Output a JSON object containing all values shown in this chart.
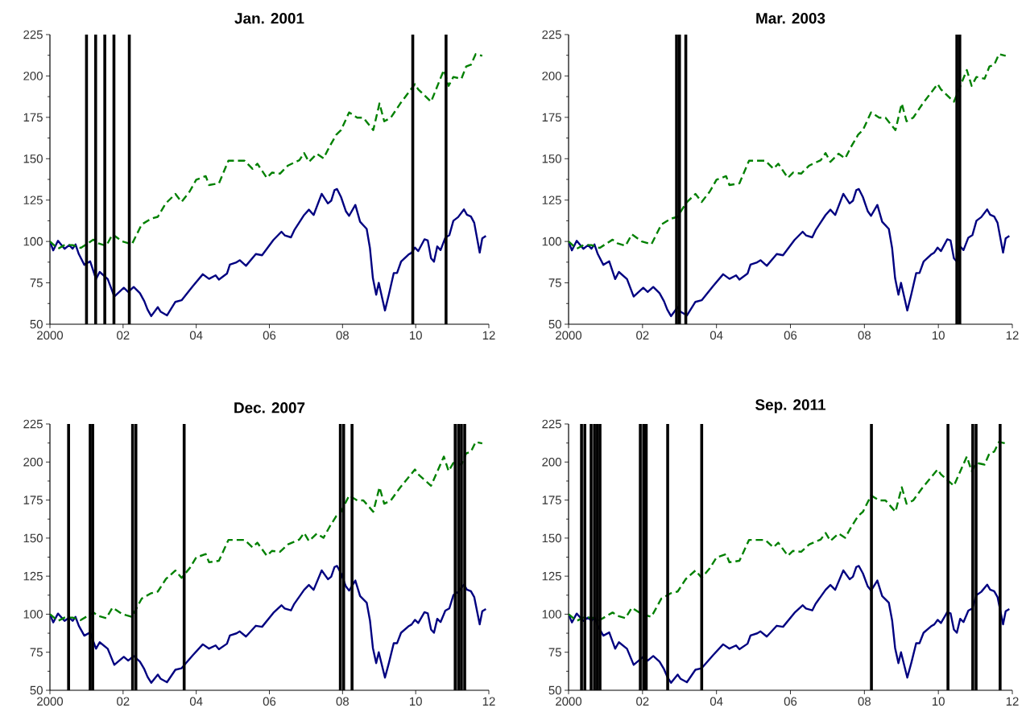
{
  "chart_data": [
    {
      "type": "line",
      "title": "Jan. 2001",
      "xlim": [
        2000,
        2012
      ],
      "ylim": [
        50,
        225
      ],
      "xticks": [
        {
          "value": 2000,
          "label": "2000"
        },
        {
          "value": 2002,
          "label": "02"
        },
        {
          "value": 2004,
          "label": "04"
        },
        {
          "value": 2006,
          "label": "06"
        },
        {
          "value": 2008,
          "label": "08"
        },
        {
          "value": 2010,
          "label": "10"
        },
        {
          "value": 2012,
          "label": "12"
        }
      ],
      "yticks": [
        50,
        75,
        100,
        125,
        150,
        175,
        200,
        225
      ],
      "series": [
        {
          "color": "#000080",
          "line_style": "solid",
          "x": [
            2000.0,
            2000.09,
            2000.22,
            2000.4,
            2000.53,
            2000.62,
            2000.7,
            2000.79,
            2000.94,
            2001.1,
            2001.26,
            2001.36,
            2001.58,
            2001.76,
            2002.02,
            2002.14,
            2002.29,
            2002.46,
            2002.58,
            2002.67,
            2002.77,
            2002.95,
            2003.03,
            2003.2,
            2003.43,
            2003.6,
            2003.91,
            2004.18,
            2004.35,
            2004.53,
            2004.62,
            2004.84,
            2004.92,
            2005.1,
            2005.19,
            2005.36,
            2005.63,
            2005.8,
            2006.11,
            2006.33,
            2006.42,
            2006.59,
            2006.68,
            2006.95,
            2007.08,
            2007.21,
            2007.43,
            2007.6,
            2007.69,
            2007.78,
            2007.85,
            2007.96,
            2008.09,
            2008.18,
            2008.35,
            2008.48,
            2008.66,
            2008.75,
            2008.83,
            2008.92,
            2008.99,
            2009.16,
            2009.27,
            2009.4,
            2009.49,
            2009.6,
            2009.8,
            2009.89,
            2009.98,
            2010.07,
            2010.24,
            2010.33,
            2010.42,
            2010.5,
            2010.59,
            2010.68,
            2010.81,
            2010.92,
            2011.03,
            2011.16,
            2011.32,
            2011.4,
            2011.51,
            2011.6,
            2011.75,
            2011.82,
            2011.92
          ],
          "values": [
            100,
            94.6,
            100.4,
            95.6,
            97.8,
            95.6,
            98.2,
            92.4,
            85.9,
            88,
            77.3,
            81.6,
            77.3,
            66.7,
            72,
            69.5,
            72.5,
            68.8,
            63.9,
            58.8,
            54.9,
            60.3,
            57.5,
            55.3,
            63.5,
            64.5,
            73.1,
            80.2,
            77.4,
            79.5,
            77,
            80.6,
            86,
            87.4,
            88.7,
            85.3,
            92.4,
            91.7,
            100.9,
            105.9,
            103.7,
            102.5,
            106.8,
            116,
            119.2,
            116,
            128.8,
            123,
            124.6,
            131,
            131.7,
            126.8,
            118.3,
            115.5,
            122.1,
            111.9,
            107.6,
            95.9,
            77.8,
            67.8,
            75,
            58.3,
            68.2,
            80.9,
            80.9,
            87.8,
            92,
            93.3,
            96.3,
            94.2,
            101.3,
            100.6,
            89.9,
            87.8,
            97,
            94.8,
            102.3,
            103.8,
            112.5,
            114.7,
            119.4,
            116.2,
            115.1,
            111.3,
            93.3,
            101.9,
            103.4
          ]
        },
        {
          "color": "#008000",
          "line_style": "dashed",
          "x": [
            2000.0,
            2000.22,
            2000.4,
            2000.62,
            2000.84,
            2001.19,
            2001.32,
            2001.54,
            2001.71,
            2001.98,
            2002.24,
            2002.51,
            2002.77,
            2002.95,
            2003.17,
            2003.43,
            2003.6,
            2003.82,
            2004.0,
            2004.26,
            2004.35,
            2004.62,
            2004.88,
            2005.14,
            2005.32,
            2005.54,
            2005.67,
            2005.93,
            2006.07,
            2006.29,
            2006.51,
            2006.82,
            2006.95,
            2007.08,
            2007.3,
            2007.48,
            2007.65,
            2007.83,
            2007.96,
            2008.18,
            2008.4,
            2008.57,
            2008.84,
            2009.01,
            2009.14,
            2009.32,
            2009.58,
            2009.98,
            2010.07,
            2010.42,
            2010.77,
            2010.9,
            2011.03,
            2011.25,
            2011.38,
            2011.51,
            2011.64,
            2011.82
          ],
          "values": [
            100,
            95.6,
            97.8,
            97.8,
            96.1,
            101.1,
            98.9,
            97.4,
            104.3,
            100,
            98.3,
            110.3,
            113.8,
            114.9,
            123.1,
            128.7,
            123.9,
            130.2,
            137.3,
            139.5,
            134.1,
            135.1,
            148.8,
            148.8,
            148.8,
            143.9,
            147,
            138.4,
            141.6,
            141,
            145.9,
            149.1,
            153.4,
            148.1,
            153,
            150.2,
            157.6,
            164.5,
            167.3,
            178,
            174.8,
            174.8,
            167.3,
            183.4,
            172.6,
            174.8,
            183.4,
            195.1,
            191.9,
            184.4,
            203.6,
            194,
            199.4,
            198.3,
            205.7,
            206.8,
            213.2,
            212.2
          ]
        }
      ],
      "ref_lines": [
        {
          "axis": "x",
          "value": 2001.0,
          "color": "#000000"
        },
        {
          "axis": "x",
          "value": 2001.25,
          "color": "#000000"
        },
        {
          "axis": "x",
          "value": 2001.5,
          "color": "#000000"
        },
        {
          "axis": "x",
          "value": 2001.75,
          "color": "#000000"
        },
        {
          "axis": "x",
          "value": 2002.17,
          "color": "#000000"
        },
        {
          "axis": "x",
          "value": 2009.92,
          "color": "#000000"
        },
        {
          "axis": "x",
          "value": 2010.83,
          "color": "#000000"
        }
      ]
    },
    {
      "type": "line",
      "title": "Mar. 2003",
      "xlim": [
        2000,
        2012
      ],
      "ylim": [
        50,
        225
      ],
      "xticks": [
        {
          "value": 2000,
          "label": "2000"
        },
        {
          "value": 2002,
          "label": "02"
        },
        {
          "value": 2004,
          "label": "04"
        },
        {
          "value": 2006,
          "label": "06"
        },
        {
          "value": 2008,
          "label": "08"
        },
        {
          "value": 2010,
          "label": "10"
        },
        {
          "value": 2012,
          "label": "12"
        }
      ],
      "yticks": [
        50,
        75,
        100,
        125,
        150,
        175,
        200,
        225
      ],
      "series": [
        {
          "color": "#000080",
          "line_style": "solid",
          "x": [
            2000.0,
            2000.09,
            2000.22,
            2000.4,
            2000.53,
            2000.62,
            2000.7,
            2000.79,
            2000.94,
            2001.1,
            2001.26,
            2001.36,
            2001.58,
            2001.76,
            2002.02,
            2002.14,
            2002.29,
            2002.46,
            2002.58,
            2002.67,
            2002.77,
            2002.95,
            2003.03,
            2003.2,
            2003.43,
            2003.6,
            2003.91,
            2004.18,
            2004.35,
            2004.53,
            2004.62,
            2004.84,
            2004.92,
            2005.1,
            2005.19,
            2005.36,
            2005.63,
            2005.8,
            2006.11,
            2006.33,
            2006.42,
            2006.59,
            2006.68,
            2006.95,
            2007.08,
            2007.21,
            2007.43,
            2007.6,
            2007.69,
            2007.78,
            2007.85,
            2007.96,
            2008.09,
            2008.18,
            2008.35,
            2008.48,
            2008.66,
            2008.75,
            2008.83,
            2008.92,
            2008.99,
            2009.16,
            2009.27,
            2009.4,
            2009.49,
            2009.6,
            2009.8,
            2009.89,
            2009.98,
            2010.07,
            2010.24,
            2010.33,
            2010.42,
            2010.5,
            2010.59,
            2010.68,
            2010.81,
            2010.92,
            2011.03,
            2011.16,
            2011.32,
            2011.4,
            2011.51,
            2011.6,
            2011.75,
            2011.82,
            2011.92
          ],
          "values": [
            100,
            94.6,
            100.4,
            95.6,
            97.8,
            95.6,
            98.2,
            92.4,
            85.9,
            88,
            77.3,
            81.6,
            77.3,
            66.7,
            72,
            69.5,
            72.5,
            68.8,
            63.9,
            58.8,
            54.9,
            60.3,
            57.5,
            55.3,
            63.5,
            64.5,
            73.1,
            80.2,
            77.4,
            79.5,
            77,
            80.6,
            86,
            87.4,
            88.7,
            85.3,
            92.4,
            91.7,
            100.9,
            105.9,
            103.7,
            102.5,
            106.8,
            116,
            119.2,
            116,
            128.8,
            123,
            124.6,
            131,
            131.7,
            126.8,
            118.3,
            115.5,
            122.1,
            111.9,
            107.6,
            95.9,
            77.8,
            67.8,
            75,
            58.3,
            68.2,
            80.9,
            80.9,
            87.8,
            92,
            93.3,
            96.3,
            94.2,
            101.3,
            100.6,
            89.9,
            87.8,
            97,
            94.8,
            102.3,
            103.8,
            112.5,
            114.7,
            119.4,
            116.2,
            115.1,
            111.3,
            93.3,
            101.9,
            103.4
          ]
        },
        {
          "color": "#008000",
          "line_style": "dashed",
          "x": [
            2000.0,
            2000.22,
            2000.4,
            2000.62,
            2000.84,
            2001.19,
            2001.32,
            2001.54,
            2001.71,
            2001.98,
            2002.24,
            2002.51,
            2002.77,
            2002.95,
            2003.17,
            2003.43,
            2003.6,
            2003.82,
            2004.0,
            2004.26,
            2004.35,
            2004.62,
            2004.88,
            2005.14,
            2005.32,
            2005.54,
            2005.67,
            2005.93,
            2006.07,
            2006.29,
            2006.51,
            2006.82,
            2006.95,
            2007.08,
            2007.3,
            2007.48,
            2007.65,
            2007.83,
            2007.96,
            2008.18,
            2008.4,
            2008.57,
            2008.84,
            2009.01,
            2009.14,
            2009.32,
            2009.58,
            2009.98,
            2010.07,
            2010.42,
            2010.77,
            2010.9,
            2011.03,
            2011.25,
            2011.38,
            2011.51,
            2011.64,
            2011.82
          ],
          "values": [
            100,
            95.6,
            97.8,
            97.8,
            96.1,
            101.1,
            98.9,
            97.4,
            104.3,
            100,
            98.3,
            110.3,
            113.8,
            114.9,
            123.1,
            128.7,
            123.9,
            130.2,
            137.3,
            139.5,
            134.1,
            135.1,
            148.8,
            148.8,
            148.8,
            143.9,
            147,
            138.4,
            141.6,
            141,
            145.9,
            149.1,
            153.4,
            148.1,
            153,
            150.2,
            157.6,
            164.5,
            167.3,
            178,
            174.8,
            174.8,
            167.3,
            183.4,
            172.6,
            174.8,
            183.4,
            195.1,
            191.9,
            184.4,
            203.6,
            194,
            199.4,
            198.3,
            205.7,
            206.8,
            213.2,
            212.2
          ]
        }
      ],
      "ref_lines": [
        {
          "axis": "x",
          "value": 2002.92,
          "color": "#000000"
        },
        {
          "axis": "x",
          "value": 2003.0,
          "color": "#000000"
        },
        {
          "axis": "x",
          "value": 2003.17,
          "color": "#000000"
        },
        {
          "axis": "x",
          "value": 2010.5,
          "color": "#000000"
        },
        {
          "axis": "x",
          "value": 2010.58,
          "color": "#000000"
        }
      ]
    },
    {
      "type": "line",
      "title": "Dec. 2007",
      "xlim": [
        2000,
        2012
      ],
      "ylim": [
        50,
        225
      ],
      "xticks": [
        {
          "value": 2000,
          "label": "2000"
        },
        {
          "value": 2002,
          "label": "02"
        },
        {
          "value": 2004,
          "label": "04"
        },
        {
          "value": 2006,
          "label": "06"
        },
        {
          "value": 2008,
          "label": "08"
        },
        {
          "value": 2010,
          "label": "10"
        },
        {
          "value": 2012,
          "label": "12"
        }
      ],
      "yticks": [
        50,
        75,
        100,
        125,
        150,
        175,
        200,
        225
      ],
      "series": [
        {
          "color": "#000080",
          "line_style": "solid",
          "x": [
            2000.0,
            2000.09,
            2000.22,
            2000.4,
            2000.53,
            2000.62,
            2000.7,
            2000.79,
            2000.94,
            2001.1,
            2001.26,
            2001.36,
            2001.58,
            2001.76,
            2002.02,
            2002.14,
            2002.29,
            2002.46,
            2002.58,
            2002.67,
            2002.77,
            2002.95,
            2003.03,
            2003.2,
            2003.43,
            2003.6,
            2003.91,
            2004.18,
            2004.35,
            2004.53,
            2004.62,
            2004.84,
            2004.92,
            2005.1,
            2005.19,
            2005.36,
            2005.63,
            2005.8,
            2006.11,
            2006.33,
            2006.42,
            2006.59,
            2006.68,
            2006.95,
            2007.08,
            2007.21,
            2007.43,
            2007.6,
            2007.69,
            2007.78,
            2007.85,
            2007.96,
            2008.09,
            2008.18,
            2008.35,
            2008.48,
            2008.66,
            2008.75,
            2008.83,
            2008.92,
            2008.99,
            2009.16,
            2009.27,
            2009.4,
            2009.49,
            2009.6,
            2009.8,
            2009.89,
            2009.98,
            2010.07,
            2010.24,
            2010.33,
            2010.42,
            2010.5,
            2010.59,
            2010.68,
            2010.81,
            2010.92,
            2011.03,
            2011.16,
            2011.32,
            2011.4,
            2011.51,
            2011.6,
            2011.75,
            2011.82,
            2011.92
          ],
          "values": [
            100,
            94.6,
            100.4,
            95.6,
            97.8,
            95.6,
            98.2,
            92.4,
            85.9,
            88,
            77.3,
            81.6,
            77.3,
            66.7,
            72,
            69.5,
            72.5,
            68.8,
            63.9,
            58.8,
            54.9,
            60.3,
            57.5,
            55.3,
            63.5,
            64.5,
            73.1,
            80.2,
            77.4,
            79.5,
            77,
            80.6,
            86,
            87.4,
            88.7,
            85.3,
            92.4,
            91.7,
            100.9,
            105.9,
            103.7,
            102.5,
            106.8,
            116,
            119.2,
            116,
            128.8,
            123,
            124.6,
            131,
            131.7,
            126.8,
            118.3,
            115.5,
            122.1,
            111.9,
            107.6,
            95.9,
            77.8,
            67.8,
            75,
            58.3,
            68.2,
            80.9,
            80.9,
            87.8,
            92,
            93.3,
            96.3,
            94.2,
            101.3,
            100.6,
            89.9,
            87.8,
            97,
            94.8,
            102.3,
            103.8,
            112.5,
            114.7,
            119.4,
            116.2,
            115.1,
            111.3,
            93.3,
            101.9,
            103.4
          ]
        },
        {
          "color": "#008000",
          "line_style": "dashed",
          "x": [
            2000.0,
            2000.22,
            2000.4,
            2000.62,
            2000.84,
            2001.19,
            2001.32,
            2001.54,
            2001.71,
            2001.98,
            2002.24,
            2002.51,
            2002.77,
            2002.95,
            2003.17,
            2003.43,
            2003.6,
            2003.82,
            2004.0,
            2004.26,
            2004.35,
            2004.62,
            2004.88,
            2005.14,
            2005.32,
            2005.54,
            2005.67,
            2005.93,
            2006.07,
            2006.29,
            2006.51,
            2006.82,
            2006.95,
            2007.08,
            2007.3,
            2007.48,
            2007.65,
            2007.83,
            2007.96,
            2008.18,
            2008.4,
            2008.57,
            2008.84,
            2009.01,
            2009.14,
            2009.32,
            2009.58,
            2009.98,
            2010.07,
            2010.42,
            2010.77,
            2010.9,
            2011.03,
            2011.25,
            2011.38,
            2011.51,
            2011.64,
            2011.82
          ],
          "values": [
            100,
            95.6,
            97.8,
            97.8,
            96.1,
            101.1,
            98.9,
            97.4,
            104.3,
            100,
            98.3,
            110.3,
            113.8,
            114.9,
            123.1,
            128.7,
            123.9,
            130.2,
            137.3,
            139.5,
            134.1,
            135.1,
            148.8,
            148.8,
            148.8,
            143.9,
            147,
            138.4,
            141.6,
            141,
            145.9,
            149.1,
            153.4,
            148.1,
            153,
            150.2,
            157.6,
            164.5,
            167.3,
            178,
            174.8,
            174.8,
            167.3,
            183.4,
            172.6,
            174.8,
            183.4,
            195.1,
            191.9,
            184.4,
            203.6,
            194,
            199.4,
            198.3,
            205.7,
            206.8,
            213.2,
            212.2
          ]
        }
      ],
      "ref_lines": [
        {
          "axis": "x",
          "value": 2000.51,
          "color": "#000000"
        },
        {
          "axis": "x",
          "value": 2001.1,
          "color": "#000000"
        },
        {
          "axis": "x",
          "value": 2001.17,
          "color": "#000000"
        },
        {
          "axis": "x",
          "value": 2002.26,
          "color": "#000000"
        },
        {
          "axis": "x",
          "value": 2002.35,
          "color": "#000000"
        },
        {
          "axis": "x",
          "value": 2003.67,
          "color": "#000000"
        },
        {
          "axis": "x",
          "value": 2007.94,
          "color": "#000000"
        },
        {
          "axis": "x",
          "value": 2008.03,
          "color": "#000000"
        },
        {
          "axis": "x",
          "value": 2008.26,
          "color": "#000000"
        },
        {
          "axis": "x",
          "value": 2011.08,
          "color": "#000000"
        },
        {
          "axis": "x",
          "value": 2011.17,
          "color": "#000000"
        },
        {
          "axis": "x",
          "value": 2011.25,
          "color": "#000000"
        },
        {
          "axis": "x",
          "value": 2011.34,
          "color": "#000000"
        }
      ]
    },
    {
      "type": "line",
      "title": "Sep. 2011",
      "xlim": [
        2000,
        2012
      ],
      "ylim": [
        50,
        225
      ],
      "xticks": [
        {
          "value": 2000,
          "label": "2000"
        },
        {
          "value": 2002,
          "label": "02"
        },
        {
          "value": 2004,
          "label": "04"
        },
        {
          "value": 2006,
          "label": "06"
        },
        {
          "value": 2008,
          "label": "08"
        },
        {
          "value": 2010,
          "label": "10"
        },
        {
          "value": 2012,
          "label": "12"
        }
      ],
      "yticks": [
        50,
        75,
        100,
        125,
        150,
        175,
        200,
        225
      ],
      "series": [
        {
          "color": "#000080",
          "line_style": "solid",
          "x": [
            2000.0,
            2000.09,
            2000.22,
            2000.4,
            2000.53,
            2000.62,
            2000.7,
            2000.79,
            2000.94,
            2001.1,
            2001.26,
            2001.36,
            2001.58,
            2001.76,
            2002.02,
            2002.14,
            2002.29,
            2002.46,
            2002.58,
            2002.67,
            2002.77,
            2002.95,
            2003.03,
            2003.2,
            2003.43,
            2003.6,
            2003.91,
            2004.18,
            2004.35,
            2004.53,
            2004.62,
            2004.84,
            2004.92,
            2005.1,
            2005.19,
            2005.36,
            2005.63,
            2005.8,
            2006.11,
            2006.33,
            2006.42,
            2006.59,
            2006.68,
            2006.95,
            2007.08,
            2007.21,
            2007.43,
            2007.6,
            2007.69,
            2007.78,
            2007.85,
            2007.96,
            2008.09,
            2008.18,
            2008.35,
            2008.48,
            2008.66,
            2008.75,
            2008.83,
            2008.92,
            2008.99,
            2009.16,
            2009.27,
            2009.4,
            2009.49,
            2009.6,
            2009.8,
            2009.89,
            2009.98,
            2010.07,
            2010.24,
            2010.33,
            2010.42,
            2010.5,
            2010.59,
            2010.68,
            2010.81,
            2010.92,
            2011.03,
            2011.16,
            2011.32,
            2011.4,
            2011.51,
            2011.6,
            2011.75,
            2011.82,
            2011.92
          ],
          "values": [
            100,
            94.6,
            100.4,
            95.6,
            97.8,
            95.6,
            98.2,
            92.4,
            85.9,
            88,
            77.3,
            81.6,
            77.3,
            66.7,
            72,
            69.5,
            72.5,
            68.8,
            63.9,
            58.8,
            54.9,
            60.3,
            57.5,
            55.3,
            63.5,
            64.5,
            73.1,
            80.2,
            77.4,
            79.5,
            77,
            80.6,
            86,
            87.4,
            88.7,
            85.3,
            92.4,
            91.7,
            100.9,
            105.9,
            103.7,
            102.5,
            106.8,
            116,
            119.2,
            116,
            128.8,
            123,
            124.6,
            131,
            131.7,
            126.8,
            118.3,
            115.5,
            122.1,
            111.9,
            107.6,
            95.9,
            77.8,
            67.8,
            75,
            58.3,
            68.2,
            80.9,
            80.9,
            87.8,
            92,
            93.3,
            96.3,
            94.2,
            101.3,
            100.6,
            89.9,
            87.8,
            97,
            94.8,
            102.3,
            103.8,
            112.5,
            114.7,
            119.4,
            116.2,
            115.1,
            111.3,
            93.3,
            101.9,
            103.4
          ]
        },
        {
          "color": "#008000",
          "line_style": "dashed",
          "x": [
            2000.0,
            2000.22,
            2000.4,
            2000.62,
            2000.84,
            2001.19,
            2001.32,
            2001.54,
            2001.71,
            2001.98,
            2002.24,
            2002.51,
            2002.77,
            2002.95,
            2003.17,
            2003.43,
            2003.6,
            2003.82,
            2004.0,
            2004.26,
            2004.35,
            2004.62,
            2004.88,
            2005.14,
            2005.32,
            2005.54,
            2005.67,
            2005.93,
            2006.07,
            2006.29,
            2006.51,
            2006.82,
            2006.95,
            2007.08,
            2007.3,
            2007.48,
            2007.65,
            2007.83,
            2007.96,
            2008.18,
            2008.4,
            2008.57,
            2008.84,
            2009.01,
            2009.14,
            2009.32,
            2009.58,
            2009.98,
            2010.07,
            2010.42,
            2010.77,
            2010.9,
            2011.03,
            2011.25,
            2011.38,
            2011.51,
            2011.64,
            2011.82
          ],
          "values": [
            100,
            95.6,
            97.8,
            97.8,
            96.1,
            101.1,
            98.9,
            97.4,
            104.3,
            100,
            98.3,
            110.3,
            113.8,
            114.9,
            123.1,
            128.7,
            123.9,
            130.2,
            137.3,
            139.5,
            134.1,
            135.1,
            148.8,
            148.8,
            148.8,
            143.9,
            147,
            138.4,
            141.6,
            141,
            145.9,
            149.1,
            153.4,
            148.1,
            153,
            150.2,
            157.6,
            164.5,
            167.3,
            178,
            174.8,
            174.8,
            167.3,
            183.4,
            172.6,
            174.8,
            183.4,
            195.1,
            191.9,
            184.4,
            203.6,
            194,
            199.4,
            198.3,
            205.7,
            206.8,
            213.2,
            212.2
          ]
        }
      ],
      "ref_lines": [
        {
          "axis": "x",
          "value": 2000.35,
          "color": "#000000"
        },
        {
          "axis": "x",
          "value": 2000.44,
          "color": "#000000"
        },
        {
          "axis": "x",
          "value": 2000.61,
          "color": "#000000"
        },
        {
          "axis": "x",
          "value": 2000.7,
          "color": "#000000"
        },
        {
          "axis": "x",
          "value": 2000.78,
          "color": "#000000"
        },
        {
          "axis": "x",
          "value": 2000.85,
          "color": "#000000"
        },
        {
          "axis": "x",
          "value": 2001.94,
          "color": "#000000"
        },
        {
          "axis": "x",
          "value": 2002.03,
          "color": "#000000"
        },
        {
          "axis": "x",
          "value": 2002.1,
          "color": "#000000"
        },
        {
          "axis": "x",
          "value": 2002.68,
          "color": "#000000"
        },
        {
          "axis": "x",
          "value": 2003.6,
          "color": "#000000"
        },
        {
          "axis": "x",
          "value": 2008.19,
          "color": "#000000"
        },
        {
          "axis": "x",
          "value": 2010.26,
          "color": "#000000"
        },
        {
          "axis": "x",
          "value": 2010.93,
          "color": "#000000"
        },
        {
          "axis": "x",
          "value": 2011.02,
          "color": "#000000"
        },
        {
          "axis": "x",
          "value": 2011.67,
          "color": "#000000"
        }
      ]
    }
  ]
}
